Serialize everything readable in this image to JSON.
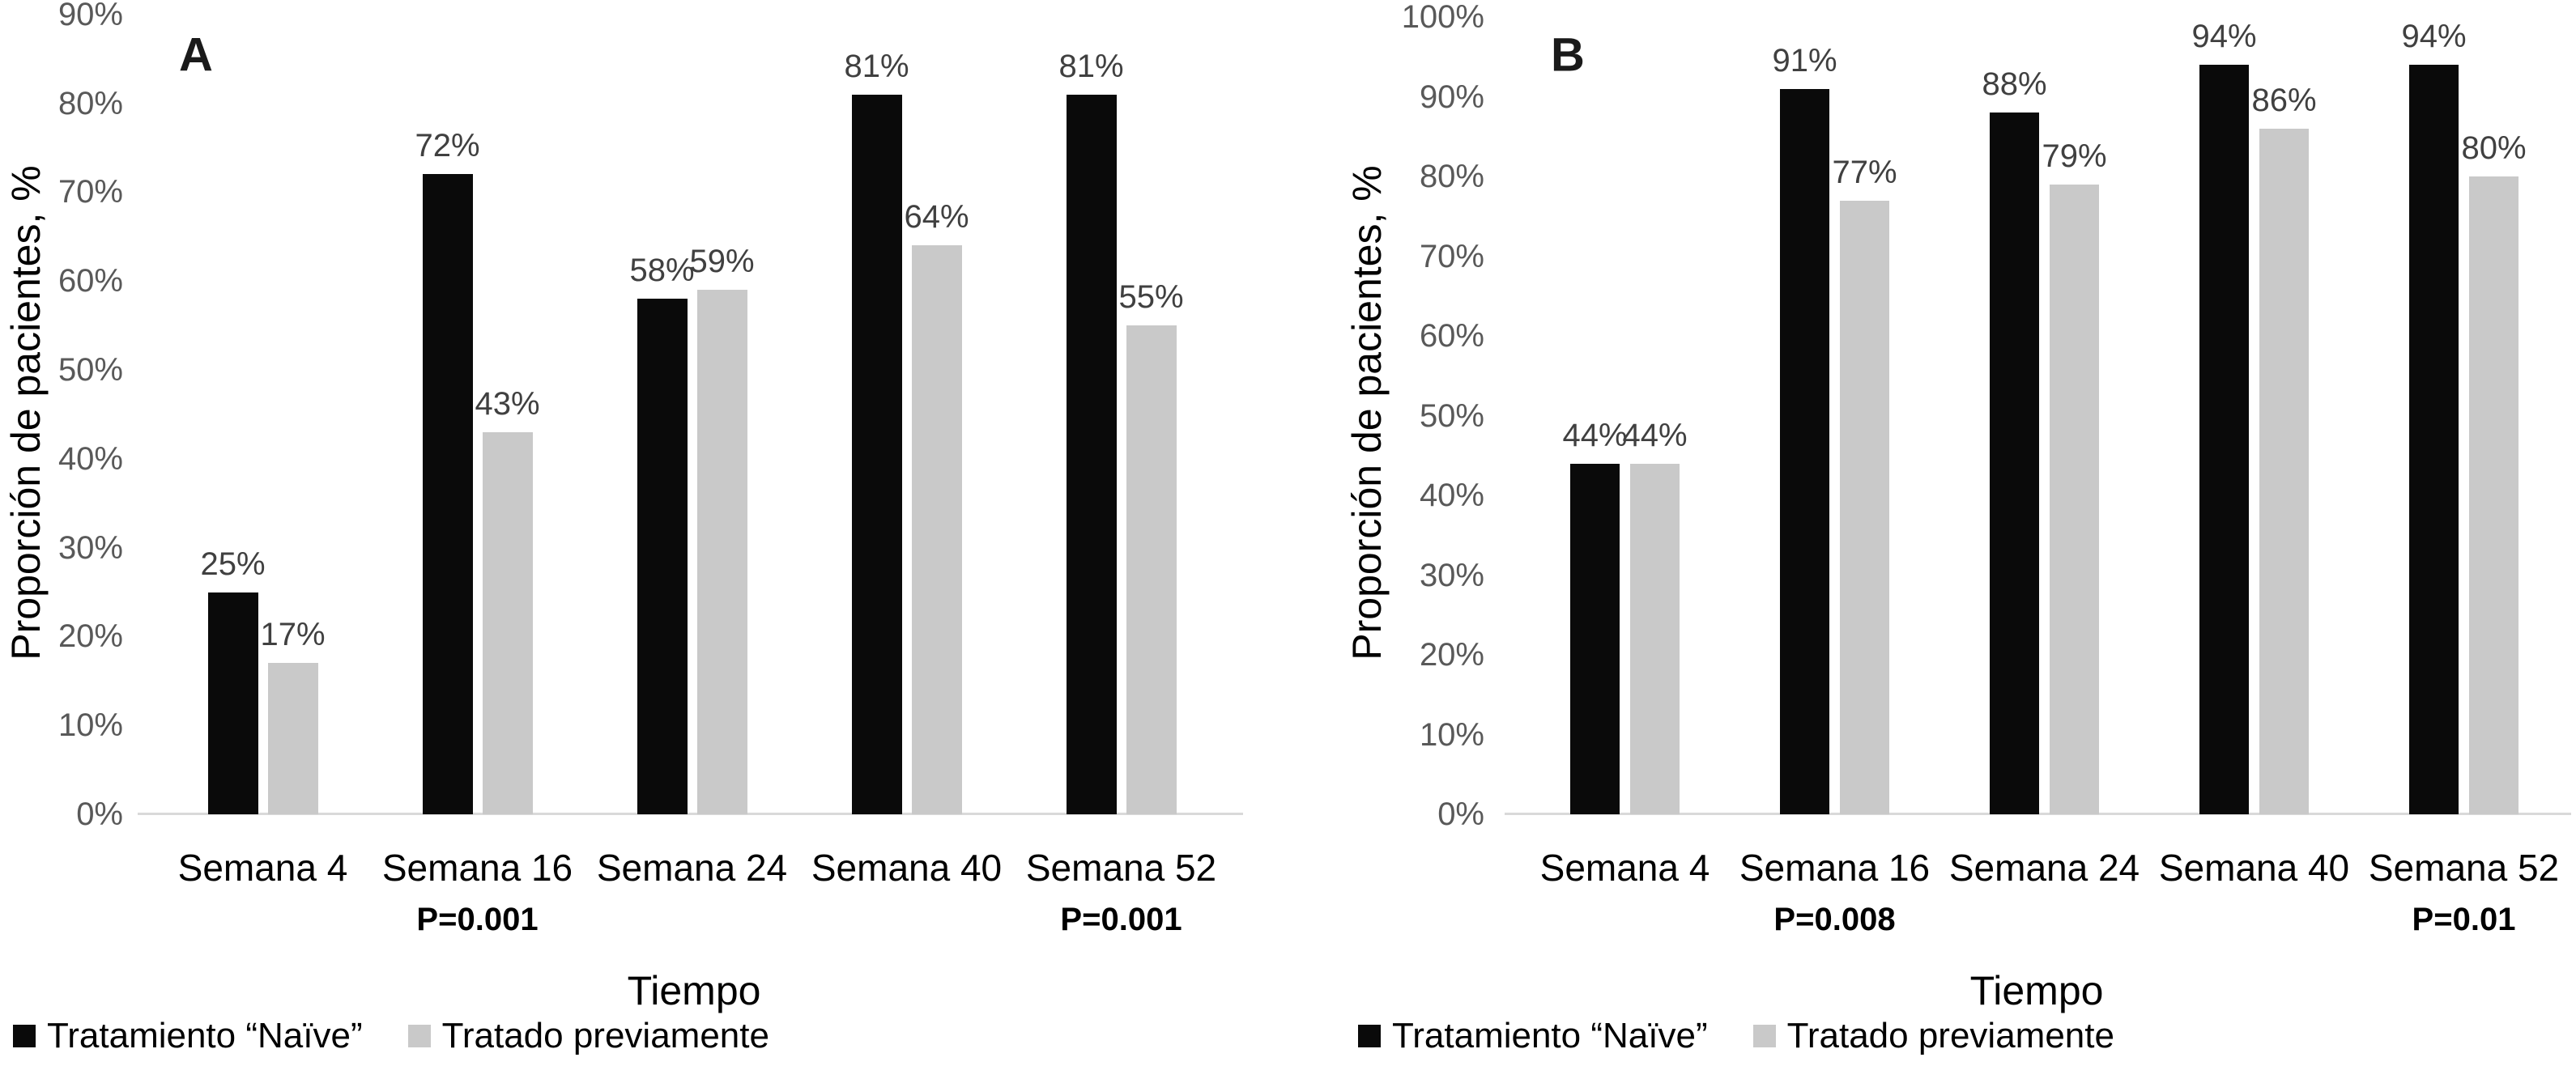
{
  "page": {
    "background": "#ffffff"
  },
  "colors": {
    "naive_bar": "#0a0a0a",
    "previously_treated_bar": "#c9c9c9",
    "axis_line": "#d9d9d9",
    "tick_text": "#595959",
    "data_label_text": "#404040",
    "text": "#000000"
  },
  "chart_data": [
    {
      "type": "bar",
      "panel_label": "A",
      "ylabel": "Proporción de pacientes, %",
      "xlabel": "Tiempo",
      "ylim": [
        0,
        90
      ],
      "ytick_step": 10,
      "yticks": [
        "0%",
        "10%",
        "20%",
        "30%",
        "40%",
        "50%",
        "60%",
        "70%",
        "80%",
        "90%"
      ],
      "grid": "off",
      "legend_position": "bottom-left",
      "categories": [
        "Semana 4",
        "Semana 16",
        "Semana 24",
        "Semana 40",
        "Semana 52"
      ],
      "series": [
        {
          "name": "Tratamiento “Naïve”",
          "color": "#0a0a0a",
          "values": [
            25,
            72,
            58,
            81,
            81
          ],
          "labels": [
            "25%",
            "72%",
            "58%",
            "81%",
            "81%"
          ]
        },
        {
          "name": "Tratado previamente",
          "color": "#c9c9c9",
          "values": [
            17,
            43,
            59,
            64,
            55
          ],
          "labels": [
            "17%",
            "43%",
            "59%",
            "64%",
            "55%"
          ]
        }
      ],
      "p_values": [
        {
          "category_index": 1,
          "label": "P=0.001"
        },
        {
          "category_index": 4,
          "label": "P=0.001"
        }
      ]
    },
    {
      "type": "bar",
      "panel_label": "B",
      "ylabel": "Proporción de pacientes, %",
      "xlabel": "Tiempo",
      "ylim": [
        0,
        100
      ],
      "ytick_step": 10,
      "yticks": [
        "0%",
        "10%",
        "20%",
        "30%",
        "40%",
        "50%",
        "60%",
        "70%",
        "80%",
        "90%",
        "100%"
      ],
      "grid": "off",
      "legend_position": "bottom-left",
      "categories": [
        "Semana 4",
        "Semana 16",
        "Semana 24",
        "Semana 40",
        "Semana 52"
      ],
      "series": [
        {
          "name": "Tratamiento “Naïve”",
          "color": "#0a0a0a",
          "values": [
            44,
            91,
            88,
            94,
            94
          ],
          "labels": [
            "44%",
            "91%",
            "88%",
            "94%",
            "94%"
          ]
        },
        {
          "name": "Tratado previamente",
          "color": "#c9c9c9",
          "values": [
            44,
            77,
            79,
            86,
            80
          ],
          "labels": [
            "44%",
            "77%",
            "79%",
            "86%",
            "80%"
          ]
        }
      ],
      "p_values": [
        {
          "category_index": 1,
          "label": "P=0.008"
        },
        {
          "category_index": 4,
          "label": "P=0.01"
        }
      ]
    }
  ]
}
